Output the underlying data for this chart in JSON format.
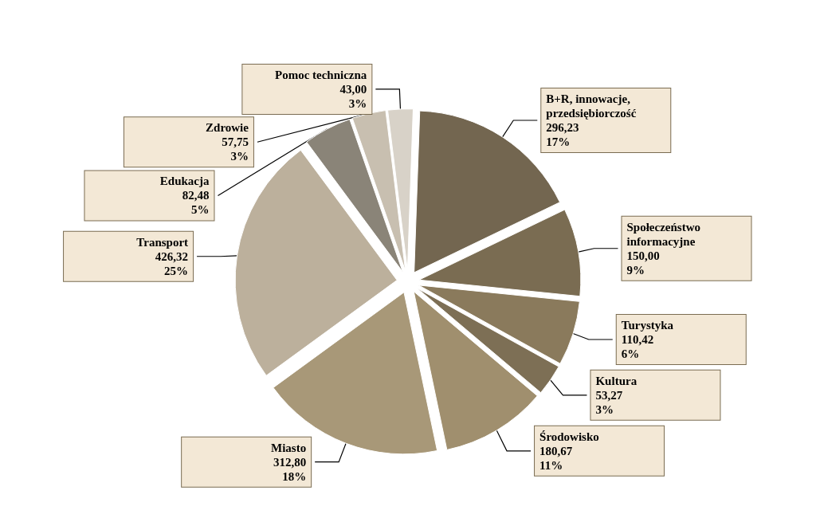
{
  "chart_data": {
    "type": "pie",
    "categories": [
      "B+R, innowacje, przedsiębiorczość",
      "Społeczeństwo informacyjne",
      "Turystyka",
      "Kultura",
      "Środowisko",
      "Miasto",
      "Transport",
      "Edukacja",
      "Zdrowie",
      "Pomoc techniczna"
    ],
    "values": [
      296.23,
      150.0,
      110.42,
      53.27,
      180.67,
      312.8,
      426.32,
      82.48,
      57.75,
      43.0
    ],
    "value_labels": [
      "296,23\n17%",
      "150,00\n9%",
      "110,42\n6%",
      "53,27\n3%",
      "180,67\n11%",
      "312,80\n18%",
      "426,32\n25%",
      "82,48\n5%",
      "57,75\n3%",
      "43,00\n3%"
    ],
    "colors": [
      "#736650",
      "#7a6c52",
      "#8a7a5c",
      "#7d6f55",
      "#a08f6e",
      "#a89878",
      "#bcb09c",
      "#8a8478",
      "#c8bfb0",
      "#d8d2c8"
    ],
    "legend": false
  }
}
